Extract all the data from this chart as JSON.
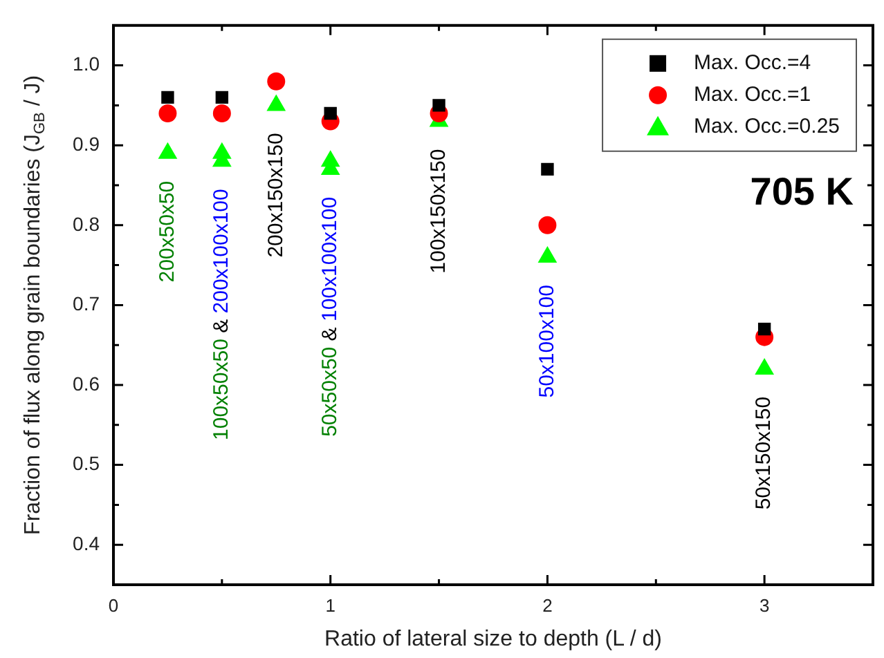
{
  "chart_data": {
    "type": "scatter",
    "xlabel": "Ratio of lateral size to depth (L / d)",
    "ylabel": "Fraction of flux along grain boundaries (J$_{GB}$ / J)",
    "xlim": [
      0,
      3.5
    ],
    "xticks": [
      0,
      {
        "value": 0.5,
        "label": null
      },
      1,
      {
        "value": 1.5,
        "label": null
      },
      2,
      {
        "value": 2.5,
        "label": null
      },
      3
    ],
    "ylim": [
      0.35,
      1.05
    ],
    "yticks": [
      0.4,
      {
        "value": 0.45,
        "label": null
      },
      0.5,
      {
        "value": 0.55,
        "label": null
      },
      0.6,
      {
        "value": 0.65,
        "label": null
      },
      0.7,
      {
        "value": 0.75,
        "label": null
      },
      0.8,
      {
        "value": 0.85,
        "label": null
      },
      0.9,
      {
        "value": 0.95,
        "label": null
      },
      {
        "value": 1.0,
        "label": "1.0"
      }
    ],
    "grid": false,
    "legend": "top right",
    "series": [
      {
        "name": "Max. Occ.=4",
        "color": "#000000",
        "marker": "square",
        "x": [
          0.25,
          0.5,
          1,
          1.5,
          2,
          3
        ],
        "values": [
          0.96,
          0.96,
          0.94,
          0.95,
          0.87,
          0.67
        ]
      },
      {
        "name": "Max. Occ.=1",
        "color": "#ff0000",
        "marker": "circle",
        "x": [
          0.25,
          0.5,
          0.75,
          1,
          1.5,
          2,
          3
        ],
        "values": [
          0.94,
          0.94,
          0.98,
          0.93,
          0.94,
          0.8,
          0.66
        ]
      },
      {
        "name": "Max. Occ.=0.25",
        "color": "#00ff00",
        "marker": "triangle",
        "x": [
          0.25,
          0.5,
          0.5,
          0.75,
          1,
          1,
          1.5,
          2,
          3
        ],
        "values": [
          0.89,
          0.89,
          0.88,
          0.95,
          0.88,
          0.87,
          0.93,
          0.76,
          0.62
        ]
      }
    ],
    "annotations": [
      {
        "text": "200x50x50",
        "x": 0.25,
        "y": 0.89
      },
      {
        "text": "100x50x50 & 200x100x100",
        "x": 0.5,
        "y": 0.88
      },
      {
        "text": "200x150x150",
        "x": 0.75,
        "y": 0.95
      },
      {
        "text": "50x50x50 & 100x100x100",
        "x": 1,
        "y": 0.87
      },
      {
        "text": "100x150x150",
        "x": 1.5,
        "y": 0.93
      },
      {
        "text": "50x100x100",
        "x": 2,
        "y": 0.76
      },
      {
        "text": "50x150x150",
        "x": 3,
        "y": 0.62
      },
      "705 K"
    ]
  }
}
